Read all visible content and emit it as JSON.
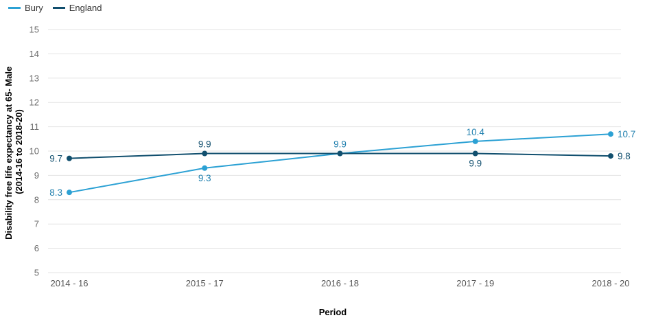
{
  "chart_data": {
    "type": "line",
    "xlabel": "Period",
    "ylabel_lines": [
      "Disability free life expectancy at 65- Male",
      "(2014-16 to 2018-20)"
    ],
    "categories": [
      "2014 - 16",
      "2015 - 17",
      "2016 - 18",
      "2017 - 19",
      "2018 - 20"
    ],
    "ylim": [
      5,
      15
    ],
    "yticks": [
      5,
      6,
      7,
      8,
      9,
      10,
      11,
      12,
      13,
      14,
      15
    ],
    "grid": true,
    "legend_position": "top-left",
    "series": [
      {
        "name": "Bury",
        "color": "#2ca1d4",
        "label_color": "#1f7fae",
        "values": [
          8.3,
          9.3,
          9.9,
          10.4,
          10.7
        ],
        "labels": [
          "8.3",
          "9.3",
          "9.9",
          "10.4",
          "10.7"
        ],
        "label_pos": [
          "left",
          "below",
          "above",
          "above",
          "right"
        ]
      },
      {
        "name": "England",
        "color": "#114f6e",
        "label_color": "#114f6e",
        "values": [
          9.7,
          9.9,
          9.9,
          9.9,
          9.8
        ],
        "labels": [
          "9.7",
          "9.9",
          "",
          "9.9",
          "9.8"
        ],
        "label_pos": [
          "left",
          "above",
          "none",
          "below",
          "right"
        ]
      }
    ]
  }
}
